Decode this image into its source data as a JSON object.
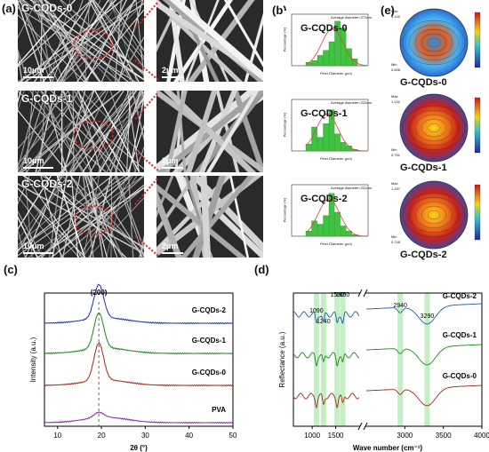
{
  "panel_a": {
    "letter": "(a)",
    "rows": [
      {
        "label": "G-CQDs-0",
        "scale_left": "10μm",
        "scale_right": "2μm"
      },
      {
        "label": "G-CQDs-1",
        "scale_left": "10μm",
        "scale_right": "2μm"
      },
      {
        "label": "G-CQDs-2",
        "scale_left": "10μm",
        "scale_right": "2μm"
      }
    ]
  },
  "panel_b": {
    "letter": "(b)",
    "ylabel": "Percentage (%)",
    "xlabel": "Fiber Diameter (μm)",
    "hists": [
      {
        "title": "G-CQDs-0",
        "avg": "Average diameter=273nm"
      },
      {
        "title": "G-CQDs-1",
        "avg": "Average diameter=226nm"
      },
      {
        "title": "G-CQDs-2",
        "avg": "Average diameter=231nm"
      }
    ]
  },
  "panel_e": {
    "letter": "(e)",
    "maps": [
      {
        "title": "G-CQDs-0",
        "max_label": "Max",
        "max": "1.142",
        "min_label": "Min",
        "min": "0.836"
      },
      {
        "title": "G-CQDs-1",
        "max_label": "Max",
        "max": "1.142",
        "min_label": "Min",
        "min": "0.751"
      },
      {
        "title": "G-CQDs-2",
        "max_label": "Max",
        "max": "1.187",
        "min_label": "Min",
        "min": "0.748"
      }
    ]
  },
  "chart_data": [
    {
      "type": "line",
      "panel": "(c)",
      "xlabel": "2θ (°)",
      "ylabel": "Intensity (a.u.)",
      "xlim": [
        7,
        50
      ],
      "xticks": [
        "10",
        "20",
        "30",
        "40",
        "50"
      ],
      "peak_label": "(200)",
      "peak_x": 19.4,
      "series": [
        {
          "name": "G-CQDs-2",
          "color": "#1f2fa8"
        },
        {
          "name": "G-CQDs-1",
          "color": "#1e8a1e"
        },
        {
          "name": "G-CQDs-0",
          "color": "#a0281a"
        },
        {
          "name": "PVA",
          "color": "#8a2aa8"
        }
      ]
    },
    {
      "type": "line",
      "panel": "(d)",
      "xlabel": "Wave number (cm⁻¹)",
      "ylabel": "Reflectance (a.u.)",
      "xticks": [
        "1000",
        "1500",
        "3000",
        "3500",
        "4000"
      ],
      "band_labels": [
        "1090",
        "1240",
        "1530",
        "1650",
        "2940",
        "3290"
      ],
      "series": [
        {
          "name": "G-CQDs-2",
          "color": "#1f5fa8"
        },
        {
          "name": "G-CQDs-1",
          "color": "#1e8a1e"
        },
        {
          "name": "G-CQDs-0",
          "color": "#a0281a"
        }
      ]
    }
  ]
}
